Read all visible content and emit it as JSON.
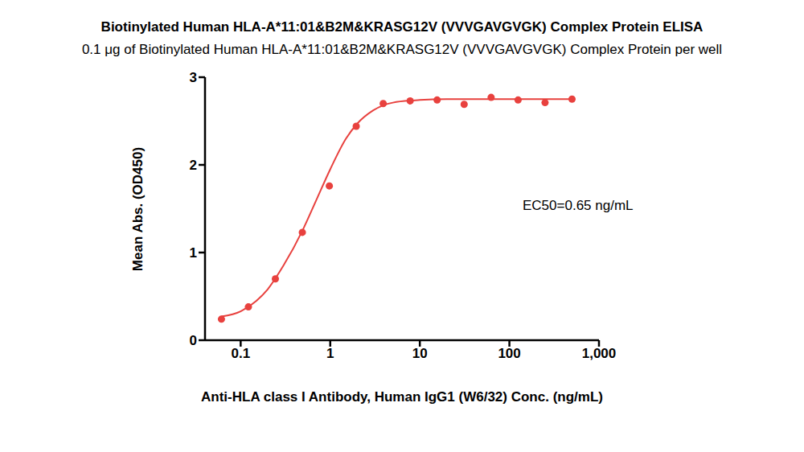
{
  "chart_data": {
    "type": "scatter",
    "title": "Biotinylated Human HLA-A*11:01&B2M&KRASG12V (VVVGAVGVGK) Complex Protein ELISA",
    "subtitle": "0.1 μg of Biotinylated Human HLA-A*11:01&B2M&KRASG12V (VVVGAVGVGK) Complex Protein per well",
    "x_label": "Anti-HLA class I Antibody, Human IgG1 (W6/32) Conc. (ng/mL)",
    "y_label": "Mean Abs. (OD450)",
    "annotation": "EC50=0.65 ng/mL",
    "log": "x",
    "grid": false,
    "xlim": [
      0.04,
      1000
    ],
    "xticks": [
      0.1,
      1,
      10,
      100,
      {
        "value": 1000,
        "label": "1,000"
      }
    ],
    "ylim": [
      0,
      3
    ],
    "yticks": [
      0,
      1,
      2,
      3
    ],
    "series": [
      {
        "type": "scatter",
        "color": "#e8413e",
        "marker": "circle",
        "x": [
          0.061,
          0.122,
          0.244,
          0.488,
          0.977,
          1.95,
          3.9,
          7.8,
          15.6,
          31.25,
          62.5,
          125,
          250,
          500
        ],
        "values": [
          0.24,
          0.38,
          0.7,
          1.23,
          1.76,
          2.44,
          2.7,
          2.73,
          2.74,
          2.69,
          2.77,
          2.74,
          2.71,
          2.75
        ]
      },
      {
        "type": "line",
        "color": "#e8413e",
        "line_style": "solid",
        "x": [
          0.061,
          0.1,
          0.15,
          0.2,
          0.3,
          0.5,
          0.7,
          1,
          1.5,
          2,
          3,
          5,
          10,
          20,
          50,
          500
        ],
        "values": [
          0.27,
          0.33,
          0.45,
          0.58,
          0.85,
          1.27,
          1.6,
          1.95,
          2.3,
          2.47,
          2.62,
          2.71,
          2.74,
          2.75,
          2.75,
          2.75
        ]
      }
    ]
  }
}
